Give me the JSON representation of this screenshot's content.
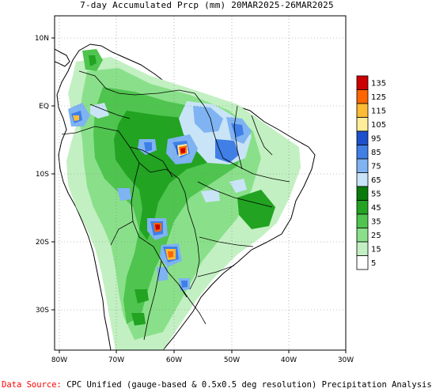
{
  "title": "7-day Accumulated Prcp (mm) 20MAR2025-26MAR2025",
  "source": {
    "label": "Data Source:",
    "text": "CPC Unified (gauge-based & 0.5x0.5 deg resolution) Precipitation Analysis"
  },
  "axes": {
    "lon_labels": [
      "80W",
      "70W",
      "60W",
      "50W",
      "40W",
      "30W"
    ],
    "lat_labels": [
      "10N",
      "EQ",
      "10S",
      "20S",
      "30S"
    ]
  },
  "legend": {
    "levels": [
      {
        "label": "135",
        "color": "#cc0000"
      },
      {
        "label": "125",
        "color": "#ff6600"
      },
      {
        "label": "115",
        "color": "#ffbb33"
      },
      {
        "label": "105",
        "color": "#ffee99"
      },
      {
        "label": "95",
        "color": "#1e4fcc"
      },
      {
        "label": "85",
        "color": "#3f7fe6"
      },
      {
        "label": "75",
        "color": "#7fb3f2"
      },
      {
        "label": "65",
        "color": "#c9e4f7"
      },
      {
        "label": "55",
        "color": "#0a7a0a"
      },
      {
        "label": "45",
        "color": "#22a322"
      },
      {
        "label": "35",
        "color": "#4fc44f"
      },
      {
        "label": "25",
        "color": "#8ae08a"
      },
      {
        "label": "15",
        "color": "#c2f0c2"
      },
      {
        "label": "5",
        "color": "#ffffff"
      }
    ]
  }
}
